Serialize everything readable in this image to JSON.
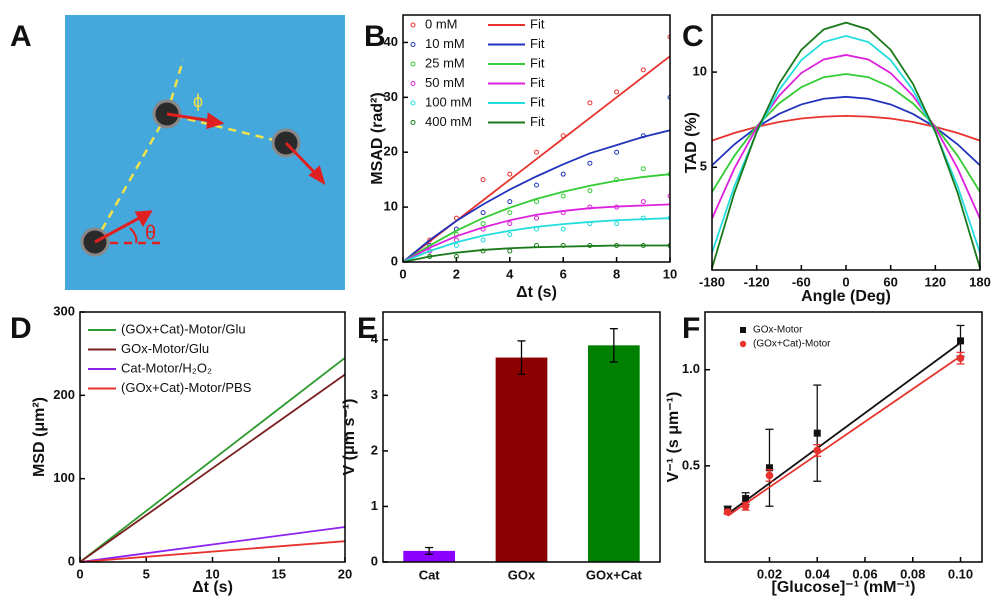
{
  "panel_a": {
    "panel": "A",
    "labels": [
      "ϕ",
      "θ"
    ]
  },
  "chart_data": [
    {
      "type": "scatter",
      "panel": "B",
      "x_label": "Δt (s)",
      "y_label": "MSAD (rad²)",
      "xlim": [
        0,
        10
      ],
      "xticks": [
        0,
        2,
        4,
        6,
        8,
        10
      ],
      "ylim": [
        0,
        45
      ],
      "yticks": [
        0,
        10,
        20,
        30,
        40
      ],
      "x": [
        1,
        2,
        3,
        4,
        5,
        6,
        7,
        8,
        9,
        10
      ],
      "fit_x": [
        0,
        1,
        2,
        3,
        4,
        5,
        6,
        7,
        8,
        9,
        10
      ],
      "series": [
        {
          "name": "0 mM",
          "fit_name": "Fit",
          "color": "#e8322d",
          "values": [
            4,
            8,
            15,
            16,
            20,
            23,
            29,
            31,
            35,
            41
          ],
          "fit": [
            0,
            3.75,
            7.5,
            11.25,
            15,
            18.75,
            22.5,
            26.25,
            30,
            33.75,
            37.5
          ]
        },
        {
          "name": "10 mM",
          "fit_name": "Fit",
          "color": "#2233bb",
          "values": [
            3,
            6,
            9,
            11,
            14,
            16,
            18,
            20,
            23,
            30
          ],
          "fit": [
            0,
            4,
            7.5,
            10.5,
            13.2,
            15.6,
            17.8,
            19.8,
            21.3,
            22.8,
            24
          ]
        },
        {
          "name": "25 mM",
          "fit_name": "Fit",
          "color": "#33cc33",
          "values": [
            2,
            5,
            7,
            9,
            11,
            12,
            13,
            15,
            17,
            16
          ],
          "fit": [
            0,
            3,
            5.7,
            8,
            9.9,
            11.5,
            12.8,
            13.9,
            14.8,
            15.5,
            16
          ]
        },
        {
          "name": "50 mM",
          "fit_name": "Fit",
          "color": "#dd22dd",
          "values": [
            2,
            4,
            6,
            7,
            8,
            9,
            10,
            10,
            11,
            12
          ],
          "fit": [
            0,
            2.6,
            4.7,
            6.3,
            7.6,
            8.6,
            9.3,
            9.8,
            10.1,
            10.3,
            10.5
          ]
        },
        {
          "name": "100 mM",
          "fit_name": "Fit",
          "color": "#22dddd",
          "values": [
            1,
            3,
            4,
            5,
            6,
            6,
            7,
            7,
            8,
            8
          ],
          "fit": [
            0,
            2,
            3.6,
            4.8,
            5.7,
            6.4,
            6.9,
            7.3,
            7.6,
            7.8,
            8
          ]
        },
        {
          "name": "400 mM",
          "fit_name": "Fit",
          "color": "#1a7a1a",
          "values": [
            1,
            1,
            2,
            2,
            3,
            3,
            3,
            3,
            3,
            3
          ],
          "fit": [
            0,
            1,
            1.7,
            2.2,
            2.5,
            2.7,
            2.8,
            2.9,
            3,
            3,
            3
          ]
        }
      ]
    },
    {
      "type": "line",
      "panel": "C",
      "x_label": "Angle (Deg)",
      "y_label": "TAD (%)",
      "xlim": [
        -180,
        180
      ],
      "xticks": [
        -180,
        -120,
        -60,
        0,
        60,
        120,
        180
      ],
      "ylim": [
        -0.4,
        13
      ],
      "yticks": [
        5,
        10
      ],
      "x": [
        -180,
        -150,
        -120,
        -90,
        -60,
        -30,
        0,
        30,
        60,
        90,
        120,
        150,
        180
      ],
      "series": [
        {
          "color": "#e8322d",
          "values": [
            6.4,
            6.8,
            7.12,
            7.38,
            7.56,
            7.66,
            7.7,
            7.66,
            7.56,
            7.38,
            7.12,
            6.8,
            6.4
          ]
        },
        {
          "color": "#2233bb",
          "values": [
            5.1,
            6.2,
            7.1,
            7.8,
            8.3,
            8.6,
            8.7,
            8.6,
            8.3,
            7.8,
            7.1,
            6.2,
            5.1
          ]
        },
        {
          "color": "#33cc33",
          "values": [
            3.7,
            5.6,
            7.15,
            8.35,
            9.21,
            9.73,
            9.9,
            9.73,
            9.21,
            8.35,
            7.15,
            5.6,
            3.7
          ]
        },
        {
          "color": "#dd22dd",
          "values": [
            2.3,
            4.93,
            7.08,
            8.75,
            9.95,
            10.66,
            10.9,
            10.66,
            9.95,
            8.75,
            7.08,
            4.93,
            2.3
          ]
        },
        {
          "color": "#22dddd",
          "values": [
            0.5,
            3.99,
            6.84,
            9.05,
            10.63,
            11.58,
            11.9,
            11.58,
            10.63,
            9.05,
            6.84,
            3.99,
            0.5
          ]
        },
        {
          "color": "#1a7a1a",
          "values": [
            -0.3,
            3.65,
            6.87,
            9.38,
            11.17,
            12.24,
            12.6,
            12.24,
            11.17,
            9.38,
            6.87,
            3.65,
            -0.3
          ]
        }
      ]
    },
    {
      "type": "line",
      "panel": "D",
      "x_label": "Δt (s)",
      "y_label": "MSD (μm²)",
      "xlim": [
        0,
        20
      ],
      "xticks": [
        0,
        5,
        10,
        15,
        20
      ],
      "ylim": [
        0,
        300
      ],
      "yticks": [
        0,
        100,
        200,
        300
      ],
      "x": [
        0,
        20
      ],
      "series": [
        {
          "name": "(GOx+Cat)-Motor/Glu",
          "color": "#2e9a2e",
          "values": [
            0,
            245
          ]
        },
        {
          "name": "GOx-Motor/Glu",
          "color": "#7a1f1f",
          "values": [
            0,
            225
          ]
        },
        {
          "name": "Cat-Motor/H₂O₂",
          "color": "#8b22ee",
          "values": [
            0,
            42
          ]
        },
        {
          "name": "(GOx+Cat)-Motor/PBS",
          "color": "#e8322d",
          "values": [
            0,
            25
          ]
        }
      ]
    },
    {
      "type": "bar",
      "panel": "E",
      "y_label": "V (μm s⁻¹)",
      "ylim": [
        0,
        4.5
      ],
      "yticks": [
        0,
        1,
        2,
        3,
        4
      ],
      "categories": [
        "Cat",
        "GOx",
        "GOx+Cat"
      ],
      "values": [
        0.2,
        3.68,
        3.9
      ],
      "errors": [
        0.06,
        0.3,
        0.3
      ],
      "colors": [
        "#8b00ff",
        "#8b0000",
        "#008000"
      ]
    },
    {
      "type": "scatter",
      "panel": "F",
      "x_label": "[Glucose]⁻¹ (mM⁻¹)",
      "y_label": "V⁻¹ (s μm⁻¹)",
      "xlim": [
        -0.007,
        0.109
      ],
      "xticks": [
        0.02,
        0.04,
        0.06,
        0.08,
        {
          "value": 0.1,
          "label": "0.10"
        }
      ],
      "ylim": [
        0,
        1.3
      ],
      "yticks": [
        0.5,
        {
          "value": 1,
          "label": "1.0"
        }
      ],
      "x": [
        0.0025,
        0.01,
        0.02,
        0.04,
        0.1
      ],
      "fit_x": [
        0.0025,
        0.1
      ],
      "series": [
        {
          "name": "GOx-Motor",
          "color": "#111111",
          "marker": "square",
          "values": [
            0.27,
            0.33,
            0.49,
            0.67,
            1.15
          ],
          "errors": [
            0.02,
            0.03,
            0.2,
            0.25,
            0.08
          ],
          "fit": [
            0.25,
            1.14
          ]
        },
        {
          "name": "(GOx+Cat)-Motor",
          "color": "#e8322d",
          "marker": "circle",
          "values": [
            0.26,
            0.29,
            0.45,
            0.58,
            1.06
          ],
          "errors": [
            0.01,
            0.02,
            0.03,
            0.03,
            0.03
          ],
          "fit": [
            0.24,
            1.07
          ]
        }
      ]
    }
  ]
}
